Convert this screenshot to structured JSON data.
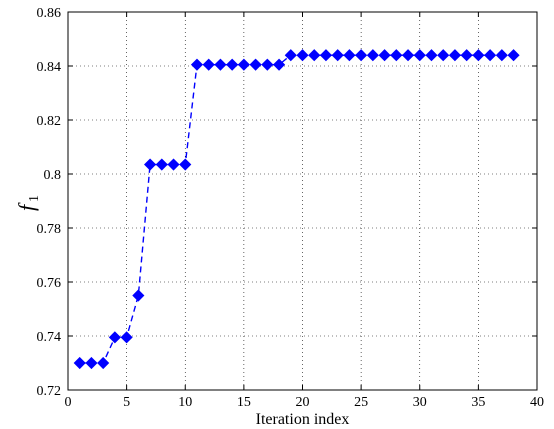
{
  "chart_data": {
    "type": "line",
    "xlabel": "Iteration index",
    "ylabel": "f",
    "ylabel_subscript": "1",
    "xlim": [
      0,
      40
    ],
    "ylim": [
      0.72,
      0.86
    ],
    "xticks": [
      0,
      5,
      10,
      15,
      20,
      25,
      30,
      35,
      40
    ],
    "xtick_labels": [
      "0",
      "5",
      "10",
      "15",
      "20",
      "25",
      "30",
      "35",
      "40"
    ],
    "yticks": [
      0.72,
      0.74,
      0.76,
      0.78,
      0.8,
      0.82,
      0.84,
      0.86
    ],
    "ytick_labels": [
      "0.72",
      "0.74",
      "0.76",
      "0.78",
      "0.8",
      "0.82",
      "0.84",
      "0.86"
    ],
    "grid": true,
    "colors": {
      "series": "#0000ff"
    },
    "series": [
      {
        "marker": "diamond",
        "line_style": "dashed",
        "x": [
          1,
          2,
          3,
          4,
          5,
          6,
          7,
          8,
          9,
          10,
          11,
          12,
          13,
          14,
          15,
          16,
          17,
          18,
          19,
          20,
          21,
          22,
          23,
          24,
          25,
          26,
          27,
          28,
          29,
          30,
          31,
          32,
          33,
          34,
          35,
          36,
          37,
          38
        ],
        "y": [
          0.73,
          0.73,
          0.73,
          0.7395,
          0.7395,
          0.755,
          0.8035,
          0.8035,
          0.8035,
          0.8035,
          0.8405,
          0.8405,
          0.8405,
          0.8405,
          0.8405,
          0.8405,
          0.8405,
          0.8405,
          0.844,
          0.844,
          0.844,
          0.844,
          0.844,
          0.844,
          0.844,
          0.844,
          0.844,
          0.844,
          0.844,
          0.844,
          0.844,
          0.844,
          0.844,
          0.844,
          0.844,
          0.844,
          0.844,
          0.844
        ]
      }
    ]
  }
}
